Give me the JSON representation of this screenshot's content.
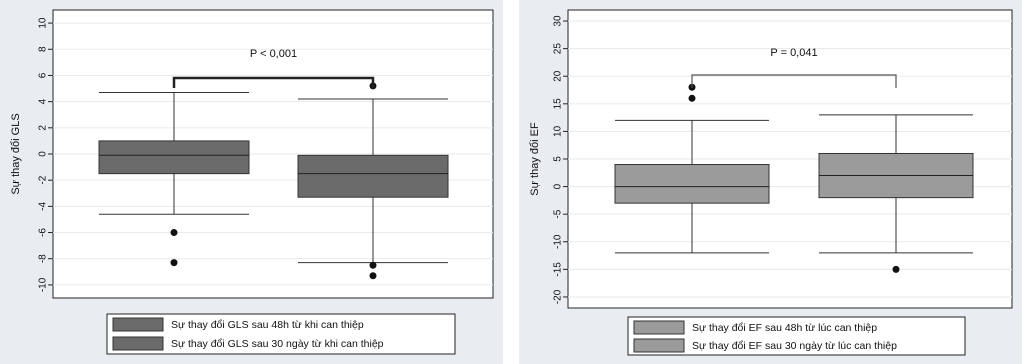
{
  "chart_data": [
    {
      "type": "box",
      "ylabel": "Sự thay đổi GLS",
      "ylim": [
        -11,
        11
      ],
      "yticks": [
        -10,
        -8,
        -6,
        -4,
        -2,
        0,
        2,
        4,
        6,
        8,
        10
      ],
      "annotation": "P < 0,001",
      "legend_position": "bottom",
      "fill_color": "#6b6b6b",
      "series": [
        {
          "name": "Sự thay đổi GLS sau 48h từ khi can thiệp",
          "whisker_low": -4.6,
          "q1": -1.5,
          "median": -0.1,
          "q3": 1.0,
          "whisker_high": 4.7,
          "outliers": [
            -6.0,
            -8.3
          ]
        },
        {
          "name": "Sự thay đổi GLS sau 30 ngày từ khi can thiệp",
          "whisker_low": -8.3,
          "q1": -3.3,
          "median": -1.5,
          "q3": -0.1,
          "whisker_high": 4.2,
          "outliers": [
            5.2,
            -8.5,
            -9.3
          ]
        }
      ]
    },
    {
      "type": "box",
      "ylabel": "Sự thay đổi EF",
      "ylim": [
        -22,
        32
      ],
      "yticks": [
        -20,
        -15,
        -10,
        -5,
        0,
        5,
        10,
        15,
        20,
        25,
        30
      ],
      "annotation": "P = 0,041",
      "legend_position": "bottom",
      "fill_color": "#9b9b9b",
      "series": [
        {
          "name": "Sự thay đổi EF sau 48h từ lúc can thiệp",
          "whisker_low": -12,
          "q1": -3,
          "median": 0,
          "q3": 4,
          "whisker_high": 12,
          "outliers": [
            18,
            16
          ]
        },
        {
          "name": "Sự thay đổi EF sau 30 ngày từ lúc can thiệp",
          "whisker_low": -12,
          "q1": -2,
          "median": 2,
          "q3": 6,
          "whisker_high": 13,
          "outliers": [
            -15
          ]
        }
      ]
    }
  ]
}
